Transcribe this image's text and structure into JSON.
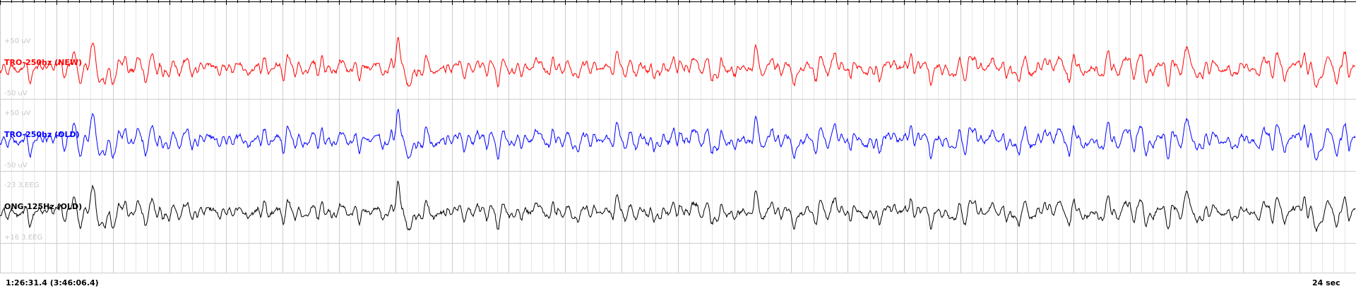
{
  "chart_data": {
    "type": "line",
    "title": "",
    "xlabel": "",
    "ylabel": "",
    "window_seconds": 24,
    "grid": true,
    "series": [
      {
        "name": "TRO-250hz (NEW)",
        "color": "#ff0000",
        "scale_top": "+50 uV",
        "scale_bottom": "-50 uV",
        "events_seconds": [
          1.65,
          7.05,
          21.0,
          23.1
        ],
        "event_amplitudes": [
          1.0,
          0.85,
          0.55,
          0.7
        ]
      },
      {
        "name": "TRO-250hz (OLD)",
        "color": "#0000ff",
        "scale_top": "+50 uV",
        "scale_bottom": "-50 uV",
        "events_seconds": [
          1.65,
          7.05,
          21.0,
          23.1
        ],
        "event_amplitudes": [
          1.0,
          0.85,
          0.55,
          0.7
        ]
      },
      {
        "name": "ONG-125Hz (OLD)",
        "color": "#000000",
        "scale_top": "-23 3.EEG",
        "scale_bottom": "+16 3.EEG",
        "events_seconds": [
          1.65,
          7.05,
          21.0,
          23.1
        ],
        "event_amplitudes": [
          1.0,
          0.85,
          0.55,
          0.7
        ]
      }
    ]
  },
  "footer": {
    "timestamp": "1:26:31.4 (3:46:06.4)",
    "duration": "24 sec"
  },
  "colors": {
    "grid_major": "#cccccc",
    "grid_minor": "#e6e6e6",
    "background": "#ffffff"
  }
}
